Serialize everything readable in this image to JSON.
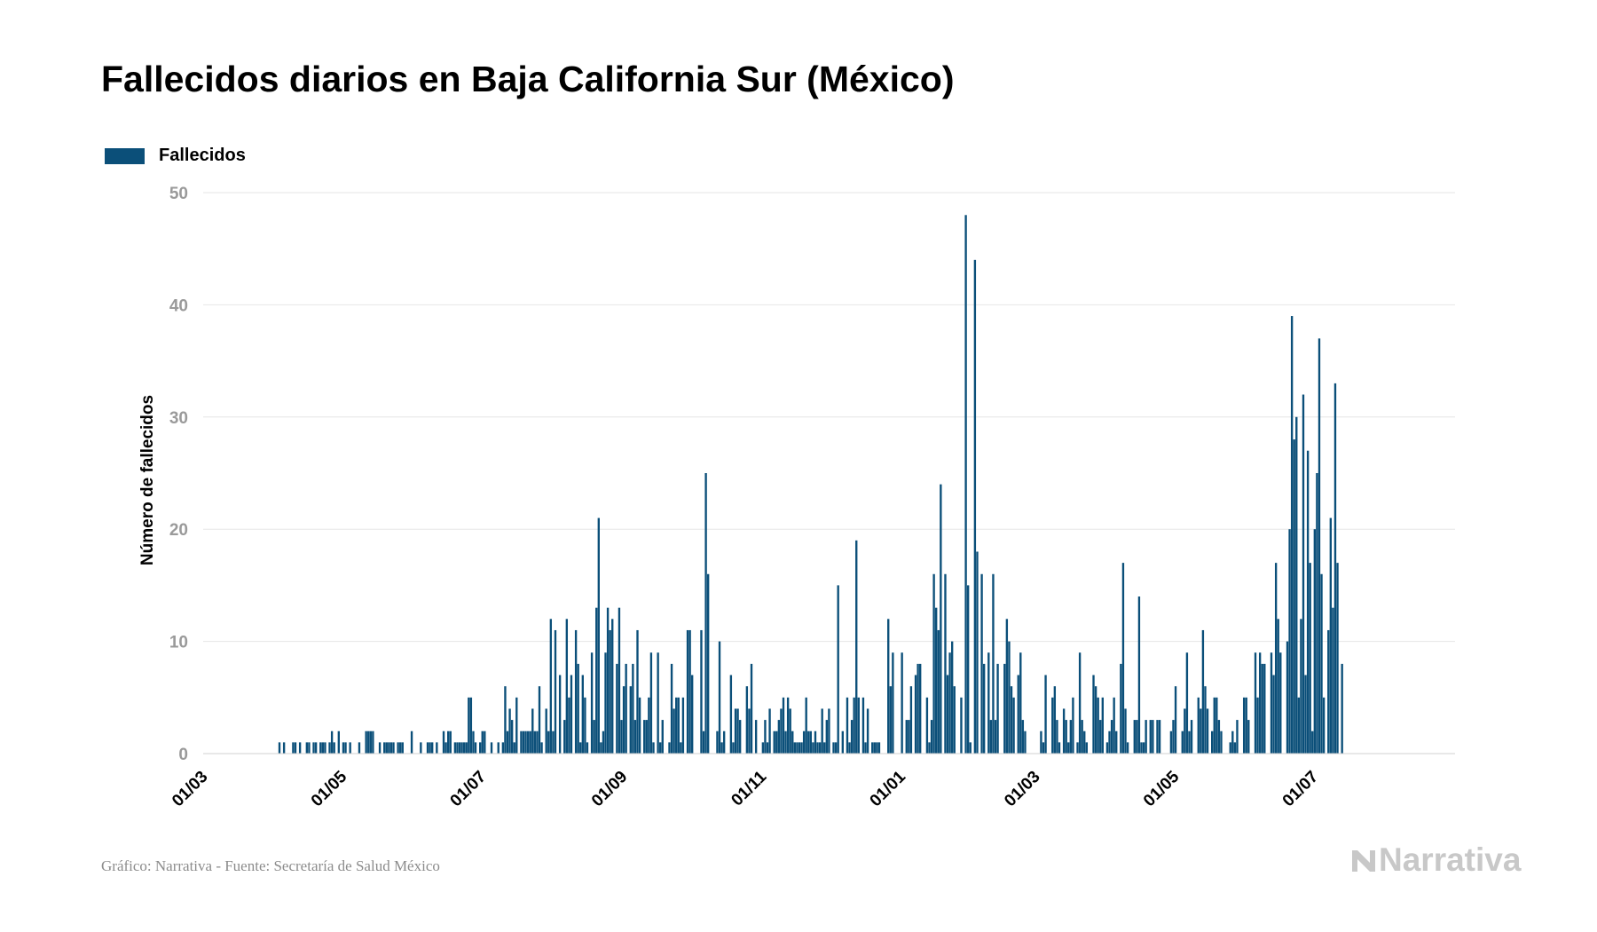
{
  "title": "Fallecidos diarios en Baja California Sur (México)",
  "footer": {
    "source": "Gráfico: Narrativa - Fuente: Secretaría de Salud México",
    "brand": "Narrativa"
  },
  "colors": {
    "bar": "#0b4f79",
    "grid": "#e6e6e6",
    "tick_text": "#9a9a9a",
    "brand": "#c8c8c8"
  },
  "icons": {
    "brand_logo": "narrativa-n-logo-icon"
  },
  "chart_data": {
    "type": "bar",
    "ylabel": "Número de fallecidos",
    "xlabel": "",
    "ylim": [
      0,
      50
    ],
    "yticks": [
      0,
      10,
      20,
      30,
      40,
      50
    ],
    "grid": true,
    "legend_position": "top-left",
    "x_tick_labels": [
      "01/03",
      "01/05",
      "01/07",
      "01/09",
      "01/11",
      "01/01",
      "01/03",
      "01/05",
      "01/07"
    ],
    "x_tick_dates": [
      "2020-03-01",
      "2020-05-01",
      "2020-07-01",
      "2020-09-01",
      "2020-11-01",
      "2021-01-01",
      "2021-03-01",
      "2021-05-01",
      "2021-07-01"
    ],
    "x_range": [
      "2020-03-01",
      "2021-08-31"
    ],
    "series": [
      {
        "name": "Fallecidos",
        "start_date": "2020-03-01",
        "values": [
          0,
          0,
          0,
          0,
          0,
          0,
          0,
          0,
          0,
          0,
          0,
          0,
          0,
          0,
          0,
          0,
          0,
          0,
          0,
          0,
          0,
          0,
          0,
          0,
          0,
          0,
          0,
          0,
          0,
          0,
          0,
          0,
          0,
          1,
          0,
          1,
          0,
          0,
          0,
          1,
          1,
          0,
          1,
          0,
          0,
          1,
          1,
          0,
          1,
          1,
          0,
          1,
          1,
          1,
          0,
          1,
          2,
          1,
          0,
          2,
          0,
          1,
          1,
          0,
          1,
          0,
          0,
          0,
          1,
          0,
          0,
          2,
          2,
          2,
          2,
          0,
          0,
          1,
          0,
          1,
          1,
          1,
          1,
          1,
          0,
          1,
          1,
          1,
          0,
          0,
          0,
          2,
          0,
          0,
          0,
          1,
          0,
          0,
          1,
          1,
          1,
          0,
          1,
          0,
          0,
          2,
          1,
          2,
          2,
          0,
          1,
          1,
          1,
          1,
          1,
          1,
          5,
          5,
          2,
          1,
          0,
          1,
          2,
          2,
          0,
          0,
          1,
          0,
          0,
          1,
          0,
          1,
          6,
          2,
          4,
          3,
          1,
          5,
          0,
          2,
          2,
          2,
          2,
          2,
          4,
          2,
          2,
          6,
          1,
          0,
          4,
          2,
          12,
          2,
          11,
          0,
          7,
          0,
          3,
          12,
          5,
          7,
          0,
          11,
          8,
          1,
          7,
          5,
          1,
          0,
          9,
          3,
          13,
          21,
          1,
          2,
          9,
          13,
          11,
          12,
          0,
          8,
          13,
          3,
          6,
          8,
          0,
          6,
          8,
          3,
          11,
          5,
          0,
          3,
          3,
          5,
          9,
          1,
          0,
          9,
          1,
          3,
          0,
          0,
          1,
          8,
          4,
          5,
          5,
          1,
          5,
          0,
          11,
          11,
          7,
          0,
          0,
          0,
          11,
          2,
          25,
          16,
          0,
          0,
          0,
          2,
          10,
          1,
          2,
          0,
          0,
          7,
          1,
          4,
          4,
          3,
          0,
          0,
          6,
          4,
          8,
          0,
          3,
          0,
          0,
          1,
          3,
          1,
          4,
          0,
          2,
          2,
          3,
          4,
          5,
          2,
          5,
          4,
          2,
          1,
          1,
          1,
          1,
          2,
          5,
          2,
          2,
          1,
          2,
          1,
          1,
          4,
          1,
          3,
          4,
          0,
          1,
          1,
          15,
          0,
          2,
          0,
          5,
          1,
          3,
          5,
          19,
          5,
          0,
          5,
          1,
          4,
          0,
          1,
          1,
          1,
          1,
          0,
          0,
          0,
          12,
          6,
          9,
          0,
          0,
          0,
          9,
          0,
          3,
          3,
          6,
          0,
          7,
          8,
          8,
          0,
          0,
          5,
          1,
          3,
          16,
          13,
          11,
          24,
          0,
          16,
          7,
          9,
          10,
          6,
          0,
          0,
          5,
          0,
          48,
          15,
          1,
          0,
          44,
          18,
          0,
          16,
          8,
          0,
          9,
          3,
          16,
          3,
          8,
          0,
          0,
          8,
          12,
          10,
          6,
          5,
          0,
          7,
          9,
          3,
          2,
          0,
          0,
          0,
          0,
          0,
          0,
          2,
          1,
          7,
          0,
          0,
          5,
          6,
          3,
          1,
          0,
          4,
          3,
          1,
          3,
          5,
          0,
          1,
          9,
          3,
          2,
          1,
          0,
          0,
          7,
          6,
          5,
          3,
          5,
          0,
          1,
          2,
          3,
          5,
          2,
          0,
          8,
          17,
          4,
          1,
          0,
          0,
          3,
          3,
          14,
          1,
          1,
          3,
          0,
          3,
          3,
          0,
          3,
          3,
          0,
          0,
          0,
          0,
          2,
          3,
          6,
          0,
          0,
          2,
          4,
          9,
          2,
          3,
          0,
          0,
          5,
          4,
          11,
          6,
          4,
          0,
          2,
          5,
          5,
          3,
          2,
          0,
          0,
          0,
          1,
          2,
          1,
          3,
          0,
          0,
          5,
          5,
          3,
          0,
          0,
          9,
          5,
          9,
          8,
          8,
          0,
          0,
          9,
          7,
          17,
          12,
          9,
          0,
          0,
          10,
          20,
          39,
          28,
          30,
          5,
          12,
          32,
          7,
          27,
          17,
          2,
          20,
          25,
          37,
          16,
          5,
          0,
          11,
          21,
          13,
          33,
          17,
          0,
          8
        ]
      }
    ]
  }
}
